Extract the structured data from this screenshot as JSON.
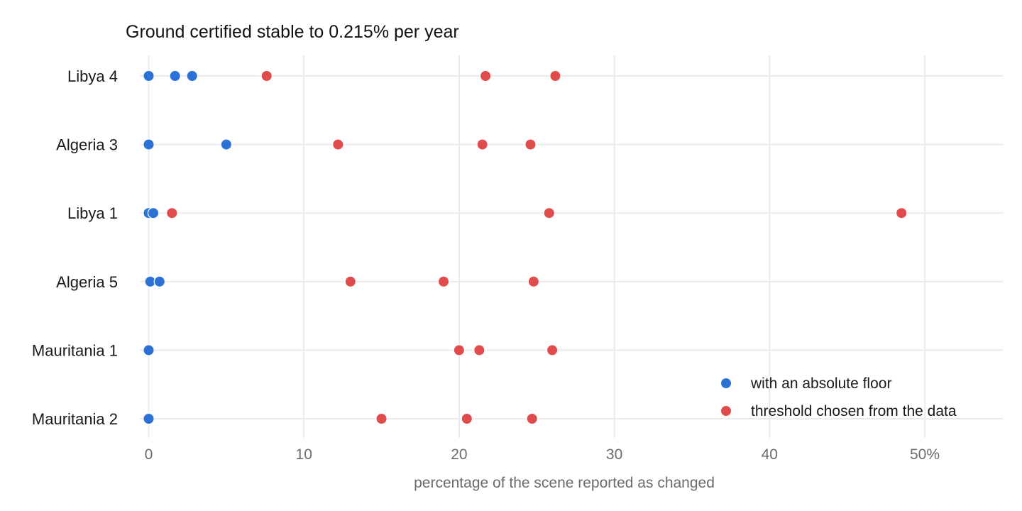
{
  "chart_data": {
    "type": "scatter",
    "title": "Ground certified stable to 0.215% per year",
    "xlabel": "percentage of the scene reported as changed",
    "ylabel": "",
    "xlim": [
      -1.5,
      55
    ],
    "x_ticks": [
      0,
      10,
      20,
      30,
      40,
      50
    ],
    "x_tick_labels": [
      "0",
      "10",
      "20",
      "30",
      "40",
      "50%"
    ],
    "grid": true,
    "legend_position": "bottom-right",
    "categories": [
      "Libya 4",
      "Algeria 3",
      "Libya 1",
      "Algeria 5",
      "Mauritania 1",
      "Mauritania 2"
    ],
    "series": [
      {
        "name": "with an absolute floor",
        "color": "#2c72d6",
        "points": [
          {
            "category": "Libya 4",
            "values": [
              0.0,
              1.7,
              2.8
            ]
          },
          {
            "category": "Algeria 3",
            "values": [
              0.0,
              5.0
            ]
          },
          {
            "category": "Libya 1",
            "values": [
              0.0,
              0.3
            ]
          },
          {
            "category": "Algeria 5",
            "values": [
              0.1,
              0.7
            ]
          },
          {
            "category": "Mauritania 1",
            "values": [
              0.0
            ]
          },
          {
            "category": "Mauritania 2",
            "values": [
              0.0
            ]
          }
        ]
      },
      {
        "name": "threshold chosen from the data",
        "color": "#e04b4b",
        "points": [
          {
            "category": "Libya 4",
            "values": [
              7.6,
              21.7,
              26.2
            ]
          },
          {
            "category": "Algeria 3",
            "values": [
              12.2,
              21.5,
              24.6
            ]
          },
          {
            "category": "Libya 1",
            "values": [
              1.5,
              25.8,
              48.5
            ]
          },
          {
            "category": "Algeria 5",
            "values": [
              13.0,
              19.0,
              24.8
            ]
          },
          {
            "category": "Mauritania 1",
            "values": [
              20.0,
              21.3,
              26.0
            ]
          },
          {
            "category": "Mauritania 2",
            "values": [
              15.0,
              20.5,
              24.7
            ]
          }
        ]
      }
    ]
  }
}
